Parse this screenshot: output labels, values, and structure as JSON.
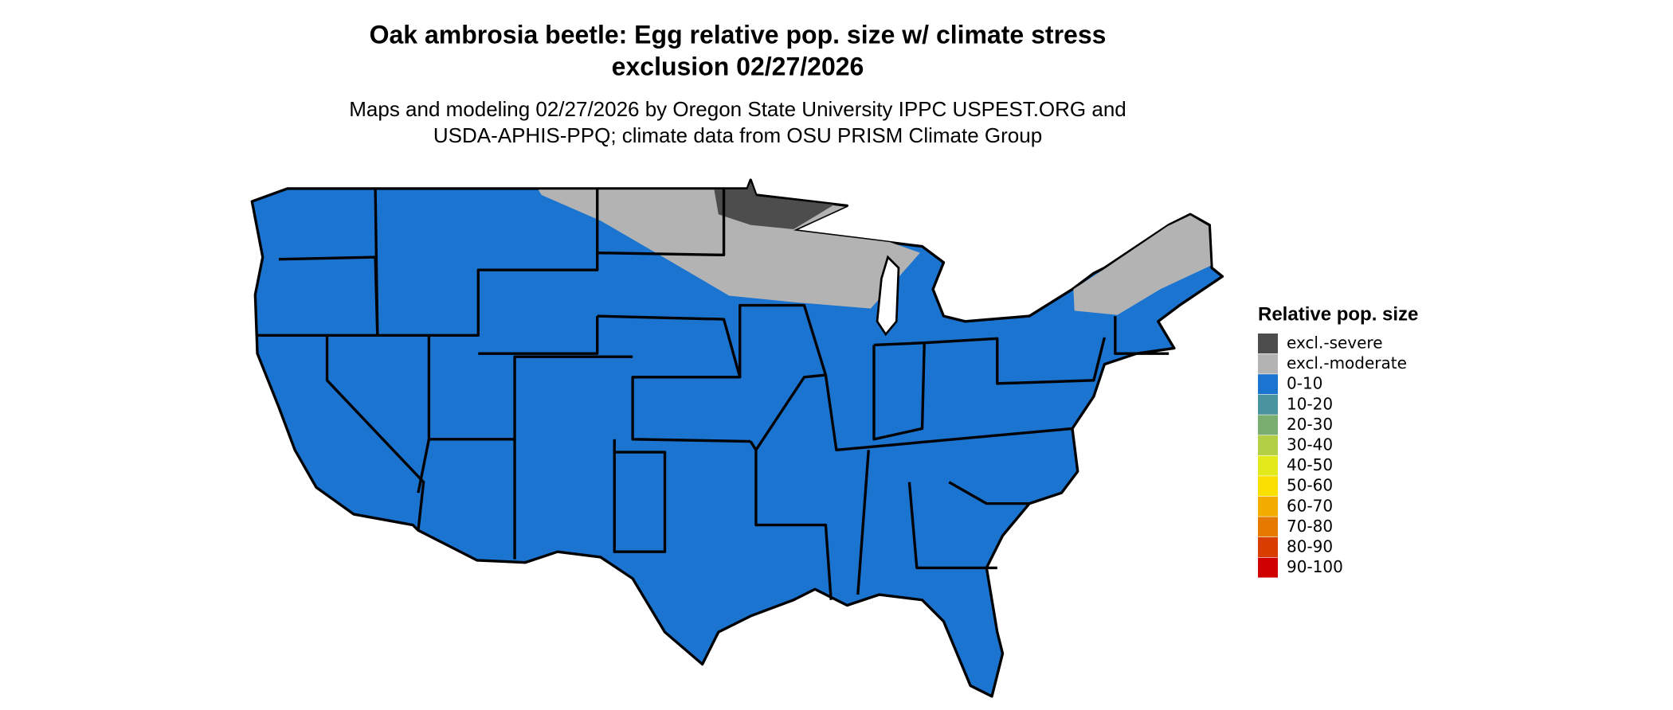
{
  "header": {
    "title": [
      "Oak ambrosia beetle: Egg relative pop. size w/ climate stress",
      "exclusion 02/27/2026"
    ],
    "subtitle": [
      "Maps and modeling 02/27/2026 by Oregon State University IPPC USPEST.ORG and",
      "USDA-APHIS-PPQ; climate data from OSU PRISM Climate Group"
    ]
  },
  "legend": {
    "title": "Relative pop. size",
    "items": [
      {
        "label": "excl.-severe",
        "color": "#4d4d4d"
      },
      {
        "label": "excl.-moderate",
        "color": "#b3b3b3"
      },
      {
        "label": "0-10",
        "color": "#1b74cf"
      },
      {
        "label": "10-20",
        "color": "#4a94a0"
      },
      {
        "label": "20-30",
        "color": "#7aad70"
      },
      {
        "label": "30-40",
        "color": "#b2cf45"
      },
      {
        "label": "40-50",
        "color": "#e2ea1c"
      },
      {
        "label": "50-60",
        "color": "#f9e000"
      },
      {
        "label": "60-70",
        "color": "#f2ad00"
      },
      {
        "label": "70-80",
        "color": "#e67a00"
      },
      {
        "label": "80-90",
        "color": "#da3d00"
      },
      {
        "label": "90-100",
        "color": "#d10000"
      }
    ]
  }
}
